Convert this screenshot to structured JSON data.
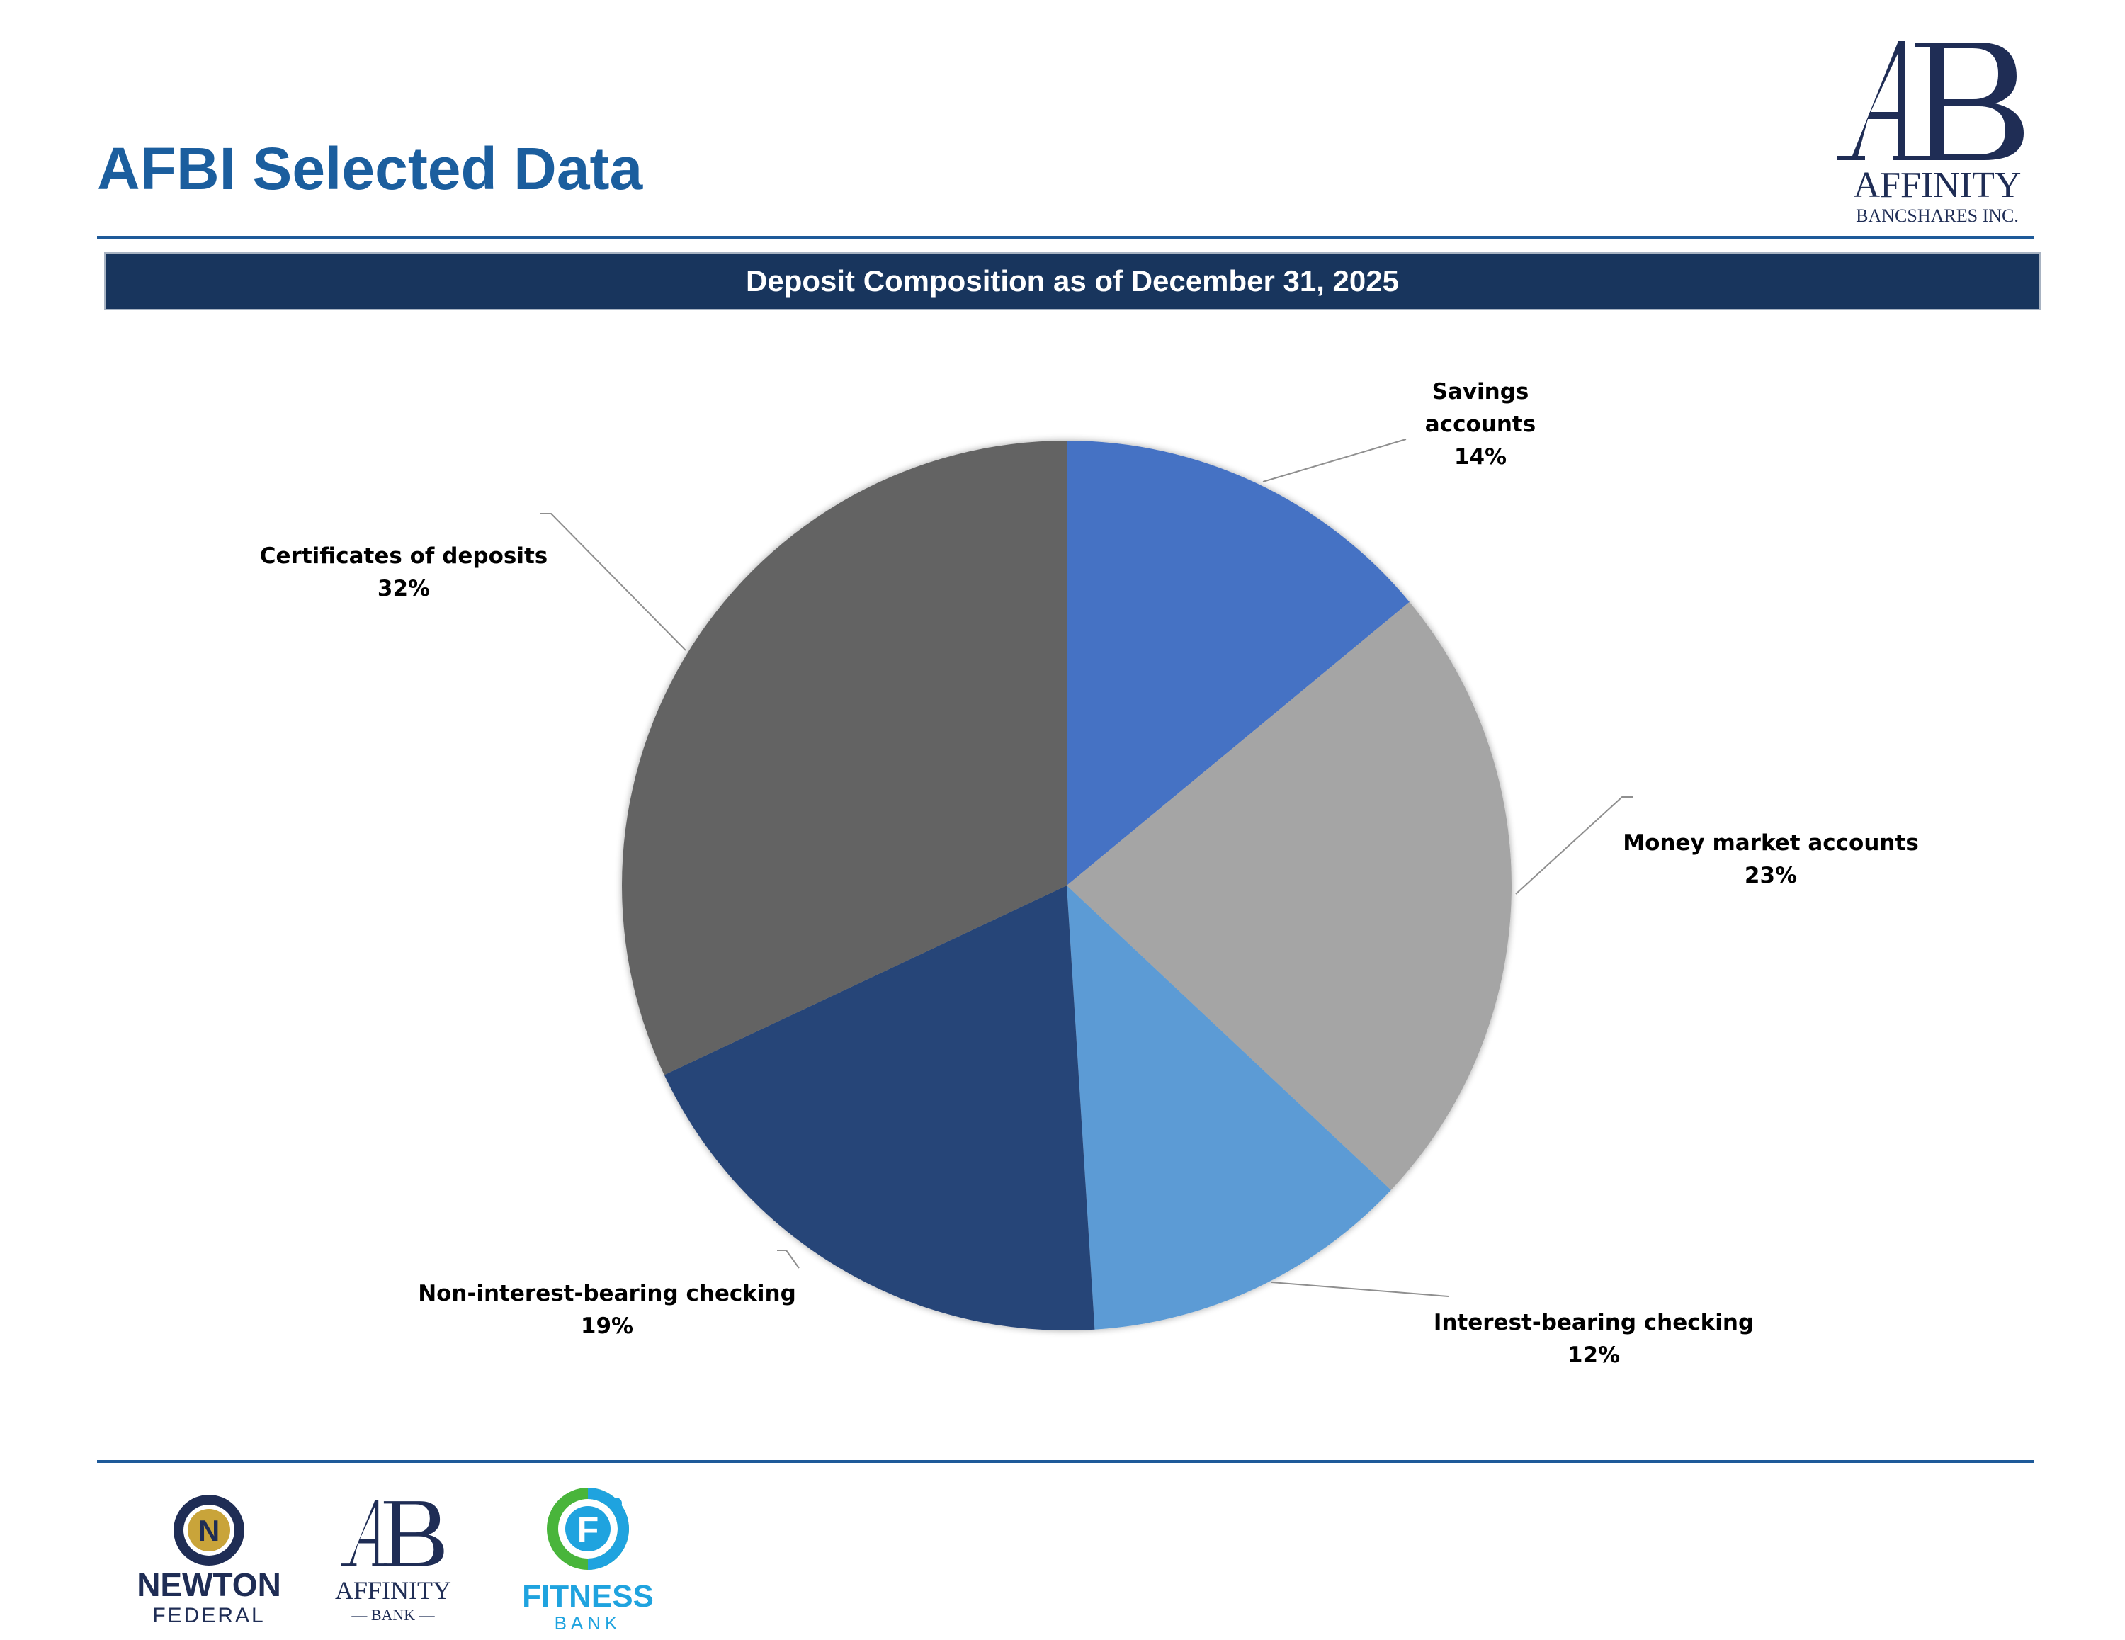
{
  "page": {
    "title": "AFBI Selected Data",
    "banner": "Deposit Composition as of December 31, 2025"
  },
  "logos": {
    "affinity_top": {
      "line1": "AFFINITY",
      "line2": "BANCSHARES INC.",
      "monogram": "AB"
    },
    "newton": {
      "line1": "NEWTON",
      "line2": "FEDERAL",
      "mark": "N"
    },
    "affinity_bank": {
      "line1": "AFFINITY",
      "line2": "— BANK —",
      "monogram": "AB"
    },
    "fitness": {
      "line1": "FITNESS",
      "line2": "BANK",
      "mark": "F"
    }
  },
  "colors": {
    "title": "#1B5E9E",
    "banner": "#18355D",
    "rule": "#1E5A99"
  },
  "chart_data": {
    "type": "pie",
    "title": "Deposit Composition as of December 31, 2025",
    "start_angle_deg": 0,
    "direction": "clockwise",
    "slices": [
      {
        "label": "Savings accounts",
        "label_lines": [
          "Savings",
          "accounts",
          "14%"
        ],
        "value": 14,
        "percent_label": "14%",
        "color": "#4472C4"
      },
      {
        "label": "Money market accounts",
        "label_lines": [
          "Money market accounts",
          "23%"
        ],
        "value": 23,
        "percent_label": "23%",
        "color": "#A5A5A5"
      },
      {
        "label": "Interest-bearing checking",
        "label_lines": [
          "Interest-bearing checking",
          "12%"
        ],
        "value": 12,
        "percent_label": "12%",
        "color": "#5B9BD5"
      },
      {
        "label": "Non-interest-bearing checking",
        "label_lines": [
          "Non-interest-bearing checking",
          "19%"
        ],
        "value": 19,
        "percent_label": "19%",
        "color": "#264478"
      },
      {
        "label": "Certificates of deposits",
        "label_lines": [
          "Certificates of deposits",
          "32%"
        ],
        "value": 32,
        "percent_label": "32%",
        "color": "#636363"
      }
    ]
  }
}
